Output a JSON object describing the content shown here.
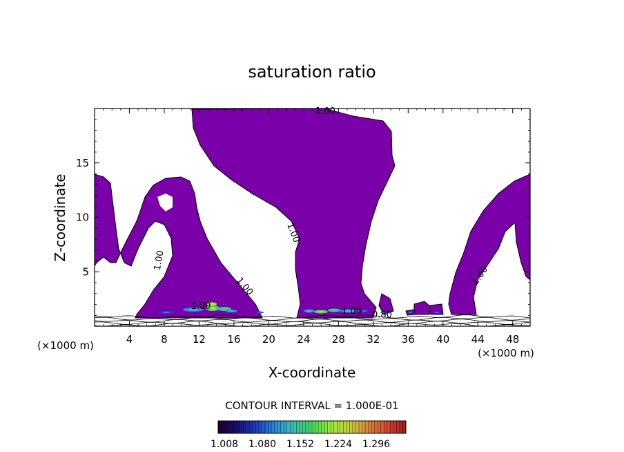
{
  "chart_data": {
    "type": "heatmap",
    "title": "saturation ratio",
    "xlabel": "X-coordinate",
    "ylabel": "Z-coordinate",
    "x_unit": "(×1000 m)",
    "x_unit_right": "(×1000 m)",
    "xlim": [
      0,
      50
    ],
    "ylim": [
      0,
      20
    ],
    "x_ticks": [
      4,
      8,
      12,
      16,
      20,
      24,
      28,
      32,
      36,
      40,
      44,
      48
    ],
    "y_ticks": [
      5,
      10,
      15
    ],
    "contour_interval_text": "CONTOUR INTERVAL = 1.000E-01",
    "contour_labels": [
      {
        "text": "1.00",
        "x": 26.5,
        "y": 19.5
      },
      {
        "text": "1.00",
        "x": 22.5,
        "y": 8.5
      },
      {
        "text": "1.00",
        "x": 7.7,
        "y": 6.0
      },
      {
        "text": "1.00",
        "x": 17.0,
        "y": 3.5
      },
      {
        "text": "1.00",
        "x": 44.5,
        "y": 4.5
      },
      {
        "text": "1.00",
        "x": 29.5,
        "y": 1.1
      },
      {
        "text": "0.80",
        "x": 33.0,
        "y": 0.8
      },
      {
        "text": "1.00",
        "x": 12.2,
        "y": 1.6
      }
    ],
    "colorbar": {
      "range": [
        1.008,
        1.32
      ],
      "tick_labels": [
        "1.008",
        "1.080",
        "1.152",
        "1.224",
        "1.296"
      ],
      "colors": [
        "#1a0033",
        "#1a0f7a",
        "#1f3fbf",
        "#2a8ad9",
        "#39c2b4",
        "#43d95a",
        "#9be840",
        "#c9d13a",
        "#d98a3a",
        "#d94a2f",
        "#a82020"
      ]
    },
    "regions_color": "#7a00aa",
    "grid": false,
    "legend": "none"
  }
}
